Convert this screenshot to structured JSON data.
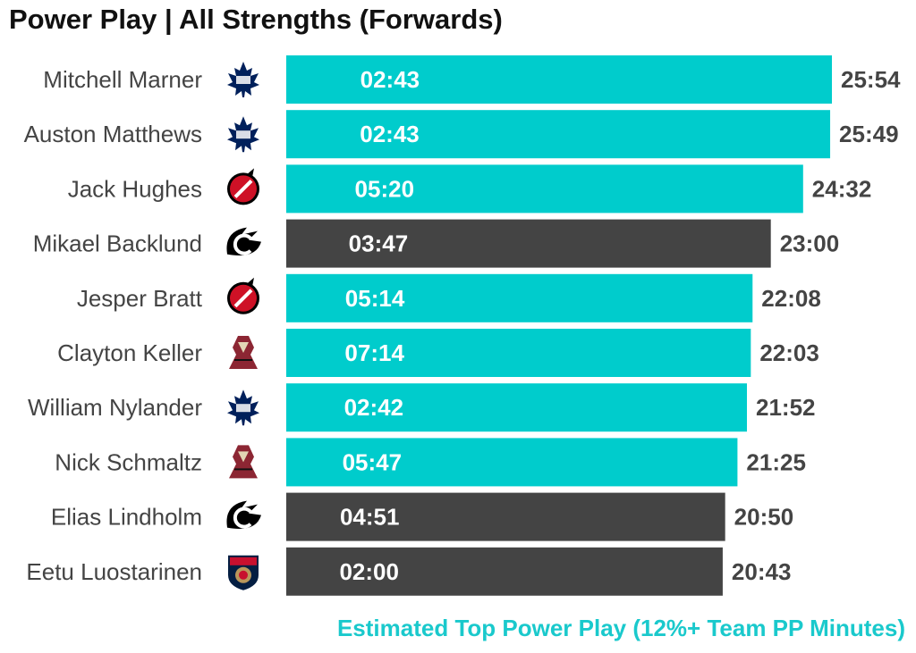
{
  "title": "Power Play | All Strengths (Forwards)",
  "footnote": "Estimated Top Power Play (12%+ Team PP Minutes)",
  "colors": {
    "top_power_play": "#00cccc",
    "other": "#444444",
    "label_text": "#444444",
    "footnote": "#1ac9cc"
  },
  "team_logos": {
    "TOR": "maple-leafs-logo-icon",
    "NJD": "devils-logo-icon",
    "CGY": "flames-logo-icon",
    "ARI": "coyotes-logo-icon",
    "FLA": "panthers-logo-icon"
  },
  "chart_data": {
    "type": "bar",
    "orientation": "horizontal",
    "categories": [
      "Mitchell Marner",
      "Auston Matthews",
      "Jack Hughes",
      "Mikael Backlund",
      "Jesper Bratt",
      "Clayton Keller",
      "William Nylander",
      "Nick Schmaltz",
      "Elias Lindholm",
      "Eetu Luostarinen"
    ],
    "teams": [
      "TOR",
      "TOR",
      "NJD",
      "CGY",
      "NJD",
      "ARI",
      "TOR",
      "ARI",
      "CGY",
      "FLA"
    ],
    "total_labels": [
      "25:54",
      "25:49",
      "24:32",
      "23:00",
      "22:08",
      "22:03",
      "21:52",
      "21:25",
      "20:50",
      "20:43"
    ],
    "inner_labels": [
      "02:43",
      "02:43",
      "05:20",
      "03:47",
      "05:14",
      "07:14",
      "02:42",
      "05:47",
      "04:51",
      "02:00"
    ],
    "top_power_play": [
      true,
      true,
      true,
      false,
      true,
      true,
      true,
      true,
      false,
      false
    ],
    "grid": false,
    "legend": "none"
  }
}
